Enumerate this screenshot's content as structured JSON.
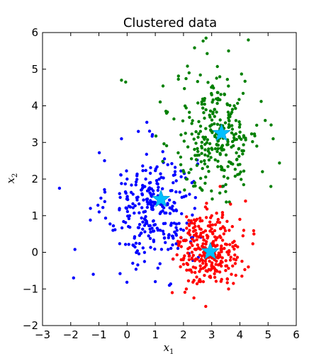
{
  "chart_data": {
    "type": "scatter",
    "title": "Clustered data",
    "xlabel": "x",
    "xlabel_sub": "1",
    "ylabel": "x",
    "ylabel_sub": "2",
    "xlim": [
      -3,
      6
    ],
    "ylim": [
      -2,
      6
    ],
    "xticks": [
      -3,
      -2,
      -1,
      0,
      1,
      2,
      3,
      4,
      5,
      6
    ],
    "yticks": [
      -2,
      -1,
      0,
      1,
      2,
      3,
      4,
      5,
      6
    ],
    "xtick_labels": [
      "−3",
      "−2",
      "−1",
      "0",
      "1",
      "2",
      "3",
      "4",
      "5",
      "6"
    ],
    "ytick_labels": [
      "−2",
      "−1",
      "0",
      "1",
      "2",
      "3",
      "4",
      "5",
      "6"
    ],
    "grid": false,
    "legend": "none",
    "series": [
      {
        "color": "#0000ff",
        "center_estimate": [
          0.9,
          1.2
        ],
        "count_estimate": 300,
        "sample_points": [
          [
            -2.4,
            1.75
          ],
          [
            -1.9,
            -0.7
          ],
          [
            -1.85,
            0.08
          ],
          [
            -1.2,
            -0.6
          ],
          [
            -0.8,
            2.5
          ],
          [
            -0.2,
            3.1
          ],
          [
            0.4,
            3.3
          ],
          [
            0.7,
            3.55
          ],
          [
            1.5,
            -0.9
          ],
          [
            1.0,
            -0.8
          ],
          [
            0.2,
            -0.3
          ],
          [
            2.3,
            1.9
          ],
          [
            2.4,
            1.2
          ],
          [
            1.3,
            0.5
          ],
          [
            0.5,
            1.7
          ],
          [
            -0.5,
            0.6
          ],
          [
            1.7,
            2.2
          ],
          [
            -1.3,
            1.2
          ],
          [
            0.0,
            2.0
          ],
          [
            1.2,
            1.1
          ]
        ]
      },
      {
        "color": "#008000",
        "center_estimate": [
          3.2,
          3.2
        ],
        "count_estimate": 300,
        "sample_points": [
          [
            2.8,
            5.85
          ],
          [
            3.6,
            5.5
          ],
          [
            4.3,
            5.8
          ],
          [
            2.2,
            4.9
          ],
          [
            -0.2,
            4.7
          ],
          [
            -0.05,
            4.65
          ],
          [
            5.1,
            1.8
          ],
          [
            4.9,
            3.6
          ],
          [
            2.1,
            2.0
          ],
          [
            4.0,
            2.4
          ],
          [
            1.4,
            3.8
          ],
          [
            3.8,
            4.0
          ],
          [
            2.6,
            3.3
          ],
          [
            3.3,
            2.7
          ],
          [
            4.6,
            2.9
          ],
          [
            1.9,
            2.6
          ],
          [
            3.0,
            4.3
          ],
          [
            4.8,
            2.2
          ],
          [
            2.4,
            1.9
          ],
          [
            3.5,
            1.85
          ]
        ]
      },
      {
        "color": "#ff0000",
        "center_estimate": [
          2.9,
          0.1
        ],
        "count_estimate": 300,
        "sample_points": [
          [
            1.6,
            -1.1
          ],
          [
            2.1,
            -1.0
          ],
          [
            3.6,
            -1.0
          ],
          [
            4.3,
            -0.4
          ],
          [
            4.5,
            0.5
          ],
          [
            4.2,
            1.4
          ],
          [
            3.3,
            1.8
          ],
          [
            2.3,
            0.8
          ],
          [
            2.8,
            -0.5
          ],
          [
            3.4,
            0.7
          ],
          [
            2.5,
            0.2
          ],
          [
            3.1,
            -0.2
          ],
          [
            3.8,
            0.3
          ],
          [
            2.2,
            -0.2
          ],
          [
            3.0,
            1.0
          ],
          [
            3.7,
            -0.6
          ],
          [
            2.6,
            -0.8
          ],
          [
            3.2,
            0.4
          ],
          [
            1.8,
            0.3
          ],
          [
            4.0,
            0.9
          ]
        ]
      }
    ],
    "centers": [
      {
        "x": 1.2,
        "y": 1.45,
        "color": "#00bfff",
        "marker": "star"
      },
      {
        "x": 3.35,
        "y": 3.25,
        "color": "#00bfff",
        "marker": "star"
      },
      {
        "x": 2.95,
        "y": 0.02,
        "color": "#00bfff",
        "marker": "star"
      }
    ]
  }
}
